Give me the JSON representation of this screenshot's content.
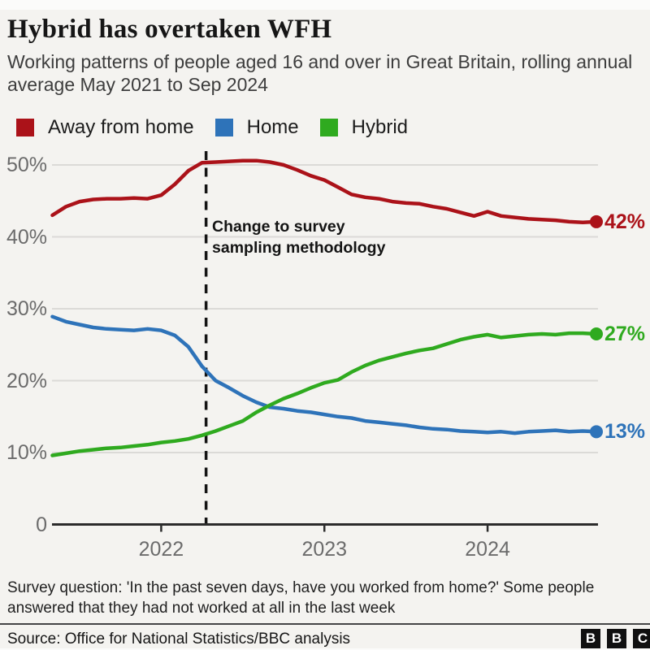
{
  "header": {
    "title": "Hybrid has overtaken WFH",
    "subtitle": "Working patterns of people aged 16 and over in Great Britain, rolling annual average May 2021 to Sep 2024"
  },
  "legend": [
    {
      "label": "Away from home",
      "color": "#ab1219"
    },
    {
      "label": "Home",
      "color": "#2e73b9"
    },
    {
      "label": "Hybrid",
      "color": "#2faa1f"
    }
  ],
  "chart_data": {
    "type": "line",
    "title": "Hybrid has overtaken WFH",
    "xlabel": "",
    "ylabel": "",
    "ylim": [
      0,
      53
    ],
    "grid": "horizontal",
    "x_start": "May 2021",
    "x_end": "Sep 2024",
    "x_interval": "monthly",
    "x_months": [
      "2021-05",
      "2021-06",
      "2021-07",
      "2021-08",
      "2021-09",
      "2021-10",
      "2021-11",
      "2021-12",
      "2022-01",
      "2022-02",
      "2022-03",
      "2022-04",
      "2022-05",
      "2022-06",
      "2022-07",
      "2022-08",
      "2022-09",
      "2022-10",
      "2022-11",
      "2022-12",
      "2023-01",
      "2023-02",
      "2023-03",
      "2023-04",
      "2023-05",
      "2023-06",
      "2023-07",
      "2023-08",
      "2023-09",
      "2023-10",
      "2023-11",
      "2023-12",
      "2024-01",
      "2024-02",
      "2024-03",
      "2024-04",
      "2024-05",
      "2024-06",
      "2024-07",
      "2024-08",
      "2024-09"
    ],
    "x_tick_labels": [
      "2022",
      "2023",
      "2024"
    ],
    "x_tick_month_indices": [
      8,
      20,
      32
    ],
    "y_ticks": [
      {
        "label": "50%",
        "value": 50
      },
      {
        "label": "40%",
        "value": 40
      },
      {
        "label": "30%",
        "value": 30
      },
      {
        "label": "20%",
        "value": 20
      },
      {
        "label": "10%",
        "value": 10
      },
      {
        "label": "0",
        "value": 0
      }
    ],
    "series": [
      {
        "name": "Away from home",
        "color": "#ab1219",
        "end_label": "42%",
        "values": [
          43.0,
          44.2,
          44.9,
          45.2,
          45.3,
          45.3,
          45.4,
          45.3,
          45.8,
          47.3,
          49.2,
          50.3,
          50.4,
          50.5,
          50.6,
          50.6,
          50.4,
          50.0,
          49.3,
          48.5,
          47.9,
          46.9,
          45.9,
          45.5,
          45.3,
          44.9,
          44.7,
          44.6,
          44.2,
          43.9,
          43.4,
          42.9,
          43.5,
          42.9,
          42.7,
          42.5,
          42.4,
          42.3,
          42.1,
          42.0,
          42.1
        ]
      },
      {
        "name": "Home",
        "color": "#2e73b9",
        "end_label": "13%",
        "values": [
          28.9,
          28.2,
          27.8,
          27.4,
          27.2,
          27.1,
          27.0,
          27.2,
          27.0,
          26.3,
          24.7,
          22.0,
          20.0,
          19.0,
          17.9,
          17.0,
          16.3,
          16.1,
          15.8,
          15.6,
          15.3,
          15.0,
          14.8,
          14.4,
          14.2,
          14.0,
          13.8,
          13.5,
          13.3,
          13.2,
          13.0,
          12.9,
          12.8,
          12.9,
          12.7,
          12.9,
          13.0,
          13.1,
          12.9,
          13.0,
          12.9
        ]
      },
      {
        "name": "Hybrid",
        "color": "#2faa1f",
        "end_label": "27%",
        "values": [
          9.6,
          9.9,
          10.2,
          10.4,
          10.6,
          10.7,
          10.9,
          11.1,
          11.4,
          11.6,
          11.9,
          12.4,
          13.0,
          13.7,
          14.4,
          15.6,
          16.6,
          17.5,
          18.2,
          19.0,
          19.7,
          20.1,
          21.2,
          22.1,
          22.8,
          23.3,
          23.8,
          24.2,
          24.5,
          25.1,
          25.7,
          26.1,
          26.4,
          26.0,
          26.2,
          26.4,
          26.5,
          26.4,
          26.6,
          26.6,
          26.5
        ]
      }
    ],
    "annotation": {
      "line1": "Change to survey",
      "line2": "sampling methodology",
      "dash_month_index": 11.3
    }
  },
  "footnote": {
    "line1": "Survey question: 'In the past seven days, have you worked from home?' Some people",
    "line2": "answered that they had not worked at all in the last week"
  },
  "source": {
    "label": "Source: Office for National Statistics/BBC analysis"
  },
  "logo": {
    "b1": "B",
    "b2": "B",
    "b3": "C"
  }
}
